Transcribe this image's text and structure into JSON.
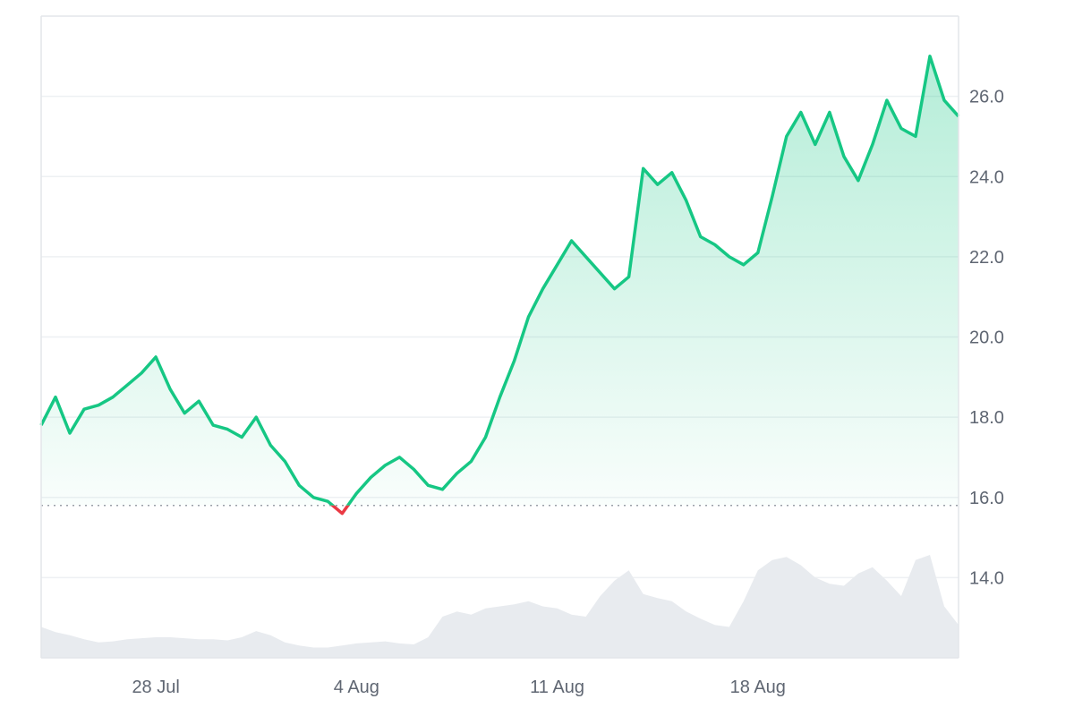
{
  "chart_data": {
    "type": "area",
    "baseline": 15.8,
    "ylim": [
      12.0,
      28.0
    ],
    "yticks": [
      "26.0",
      "24.0",
      "22.0",
      "20.0",
      "18.0",
      "16.0",
      "14.0"
    ],
    "xticks": [
      "28 Jul",
      "4 Aug",
      "11 Aug",
      "18 Aug"
    ],
    "x_start": "2025-07-24",
    "x_end": "2025-08-25",
    "colors": {
      "up_line": "#16c784",
      "down_line": "#ea3943",
      "up_fill": "#16c784",
      "volume": "#e8ebef",
      "grid": "#eef0f3",
      "baseline": "#9aa0a8"
    },
    "series": [
      {
        "x": [
          "2025-07-24",
          "2025-07-24 12:00",
          "2025-07-25",
          "2025-07-25 12:00",
          "2025-07-26",
          "2025-07-26 12:00",
          "2025-07-27",
          "2025-07-27 12:00",
          "2025-07-28",
          "2025-07-28 12:00",
          "2025-07-29",
          "2025-07-29 12:00",
          "2025-07-30",
          "2025-07-30 12:00",
          "2025-07-31",
          "2025-07-31 12:00",
          "2025-08-01",
          "2025-08-01 12:00",
          "2025-08-02",
          "2025-08-02 12:00",
          "2025-08-03",
          "2025-08-03 12:00",
          "2025-08-04",
          "2025-08-04 12:00",
          "2025-08-05",
          "2025-08-05 12:00",
          "2025-08-06",
          "2025-08-06 12:00",
          "2025-08-07",
          "2025-08-07 12:00",
          "2025-08-08",
          "2025-08-08 12:00",
          "2025-08-09",
          "2025-08-09 12:00",
          "2025-08-10",
          "2025-08-10 12:00",
          "2025-08-11",
          "2025-08-11 12:00",
          "2025-08-12",
          "2025-08-12 12:00",
          "2025-08-13",
          "2025-08-13 12:00",
          "2025-08-14",
          "2025-08-14 12:00",
          "2025-08-15",
          "2025-08-15 12:00",
          "2025-08-16",
          "2025-08-16 12:00",
          "2025-08-17",
          "2025-08-17 12:00",
          "2025-08-18",
          "2025-08-18 12:00",
          "2025-08-19",
          "2025-08-19 12:00",
          "2025-08-20",
          "2025-08-20 12:00",
          "2025-08-21",
          "2025-08-21 12:00",
          "2025-08-22",
          "2025-08-22 12:00",
          "2025-08-23",
          "2025-08-23 12:00",
          "2025-08-24",
          "2025-08-24 12:00",
          "2025-08-25"
        ],
        "values": [
          17.8,
          18.5,
          17.6,
          18.2,
          18.3,
          18.5,
          18.8,
          19.1,
          19.5,
          18.7,
          18.1,
          18.4,
          17.8,
          17.7,
          17.5,
          18.0,
          17.3,
          16.9,
          16.3,
          16.0,
          15.9,
          15.6,
          16.1,
          16.5,
          16.8,
          17.0,
          16.7,
          16.3,
          16.2,
          16.6,
          16.9,
          17.5,
          18.5,
          19.4,
          20.5,
          21.2,
          21.8,
          22.4,
          22.0,
          21.6,
          21.2,
          21.5,
          24.2,
          23.8,
          24.1,
          23.4,
          22.5,
          22.3,
          22.0,
          21.8,
          22.1,
          23.5,
          25.0,
          25.6,
          24.8,
          25.6,
          24.5,
          23.9,
          24.8,
          25.9,
          25.2,
          25.0,
          27.0,
          25.9,
          25.5
        ]
      }
    ],
    "volume": [
      0.3,
      0.25,
      0.22,
      0.18,
      0.15,
      0.16,
      0.18,
      0.19,
      0.2,
      0.2,
      0.19,
      0.18,
      0.18,
      0.17,
      0.2,
      0.26,
      0.22,
      0.15,
      0.12,
      0.1,
      0.1,
      0.12,
      0.14,
      0.15,
      0.16,
      0.14,
      0.13,
      0.2,
      0.4,
      0.45,
      0.42,
      0.48,
      0.5,
      0.52,
      0.55,
      0.5,
      0.48,
      0.42,
      0.4,
      0.6,
      0.75,
      0.85,
      0.62,
      0.58,
      0.55,
      0.45,
      0.38,
      0.32,
      0.3,
      0.55,
      0.85,
      0.95,
      0.98,
      0.9,
      0.78,
      0.72,
      0.7,
      0.82,
      0.88,
      0.75,
      0.6,
      0.95,
      1.0,
      0.5,
      0.32
    ]
  }
}
